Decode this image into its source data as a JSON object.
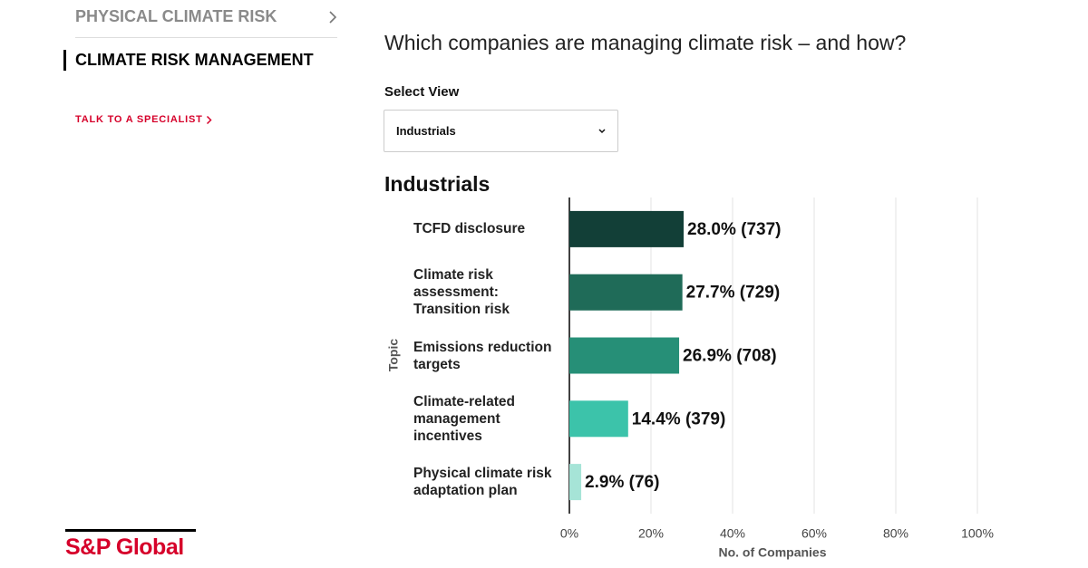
{
  "sidebar": {
    "items": [
      "PHYSICAL CLIMATE RISK",
      "CLIMATE RISK MANAGEMENT"
    ],
    "link": "TALK TO A SPECIALIST"
  },
  "logo": "S&P Global",
  "heading": "Which companies are managing climate risk – and how?",
  "select": {
    "label": "Select View",
    "value": "Industrials"
  },
  "chart_data": {
    "type": "hbar",
    "title": "Industrials",
    "categories": [
      "TCFD disclosure",
      "Climate risk assessment: Transition risk",
      "Emissions reduction targets",
      "Climate-related management incentives",
      "Physical climate risk adaptation plan"
    ],
    "values": [
      28.0,
      27.7,
      26.9,
      14.4,
      2.9
    ],
    "value_labels": [
      "28.0% (737)",
      "27.7% (729)",
      "26.9% (708)",
      "14.4% (379)",
      "2.9% (76)"
    ],
    "colors": [
      "#123f37",
      "#1f6b58",
      "#268f77",
      "#3cc3aa",
      "#a6e4d7"
    ],
    "xlim": [
      0,
      100
    ],
    "xticks": [
      {
        "value": 0,
        "label": "0%"
      },
      {
        "value": 20,
        "label": "20%"
      },
      {
        "value": 40,
        "label": "40%"
      },
      {
        "value": 60,
        "label": "60%"
      },
      {
        "value": 80,
        "label": "80%"
      },
      {
        "value": 100,
        "label": "100%"
      }
    ],
    "x_label": "No. of Companies",
    "y_label": "Topic",
    "grid": true
  }
}
